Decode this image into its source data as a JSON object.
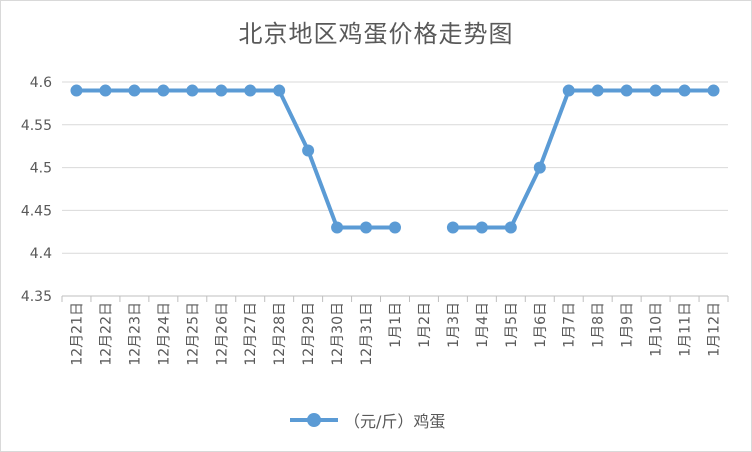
{
  "chart_data": {
    "type": "line",
    "title": "北京地区鸡蛋价格走势图",
    "categories": [
      "12月21日",
      "12月22日",
      "12月23日",
      "12月24日",
      "12月25日",
      "12月26日",
      "12月27日",
      "12月28日",
      "12月29日",
      "12月30日",
      "12月31日",
      "1月1日",
      "1月2日",
      "1月3日",
      "1月4日",
      "1月5日",
      "1月6日",
      "1月7日",
      "1月8日",
      "1月9日",
      "1月10日",
      "1月11日",
      "1月12日"
    ],
    "series": [
      {
        "name": "（元/斤）鸡蛋",
        "values": [
          4.59,
          4.59,
          4.59,
          4.59,
          4.59,
          4.59,
          4.59,
          4.59,
          4.52,
          4.43,
          4.43,
          4.43,
          null,
          4.43,
          4.43,
          4.43,
          4.5,
          4.59,
          4.59,
          4.59,
          4.59,
          4.59,
          4.59
        ]
      }
    ],
    "yticks": [
      "4.35",
      "4.4",
      "4.45",
      "4.5",
      "4.55",
      "4.6"
    ],
    "ylim": [
      4.35,
      4.6
    ],
    "grid": true,
    "legend": "bottom",
    "color": "#5b9bd5"
  }
}
